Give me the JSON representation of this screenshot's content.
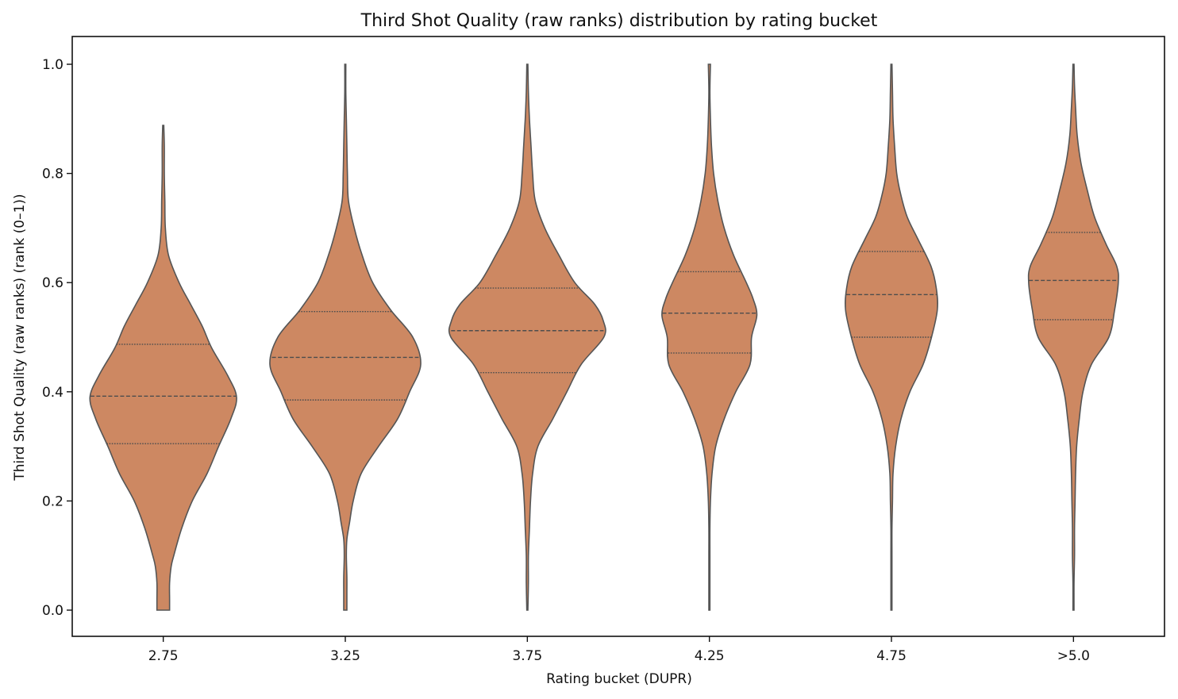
{
  "chart_data": {
    "type": "violin",
    "title": "Third Shot Quality (raw ranks) distribution by rating bucket",
    "xlabel": "Rating bucket (DUPR)",
    "ylabel": "Third Shot Quality (raw ranks) (rank (0–1))",
    "ylim": [
      -0.048,
      1.05
    ],
    "yticks": [
      "0.0",
      "0.2",
      "0.4",
      "0.6",
      "0.8",
      "1.0"
    ],
    "grid": false,
    "fill_color": "#cd8862",
    "line_color": "#555555",
    "categories": [
      "2.75",
      "3.25",
      "3.75",
      "4.25",
      "4.75",
      ">5.0"
    ],
    "violins": [
      {
        "category": "2.75",
        "min": 0.0,
        "max": 0.888,
        "q1": 0.305,
        "median": 0.392,
        "q3": 0.487,
        "profile": [
          [
            0.0,
            0.012
          ],
          [
            0.02,
            0.012
          ],
          [
            0.05,
            0.012
          ],
          [
            0.08,
            0.015
          ],
          [
            0.1,
            0.02
          ],
          [
            0.15,
            0.035
          ],
          [
            0.2,
            0.055
          ],
          [
            0.25,
            0.083
          ],
          [
            0.3,
            0.105
          ],
          [
            0.35,
            0.128
          ],
          [
            0.39,
            0.139
          ],
          [
            0.43,
            0.122
          ],
          [
            0.48,
            0.092
          ],
          [
            0.52,
            0.074
          ],
          [
            0.56,
            0.052
          ],
          [
            0.6,
            0.03
          ],
          [
            0.65,
            0.01
          ],
          [
            0.7,
            0.004
          ],
          [
            0.75,
            0.003
          ],
          [
            0.8,
            0.002
          ],
          [
            0.85,
            0.002
          ],
          [
            0.888,
            0.001
          ]
        ]
      },
      {
        "category": "3.25",
        "min": 0.0,
        "max": 1.0,
        "q1": 0.385,
        "median": 0.463,
        "q3": 0.547,
        "profile": [
          [
            0.0,
            0.003
          ],
          [
            0.03,
            0.003
          ],
          [
            0.06,
            0.003
          ],
          [
            0.1,
            0.002
          ],
          [
            0.13,
            0.003
          ],
          [
            0.16,
            0.008
          ],
          [
            0.2,
            0.015
          ],
          [
            0.25,
            0.03
          ],
          [
            0.3,
            0.063
          ],
          [
            0.35,
            0.099
          ],
          [
            0.4,
            0.122
          ],
          [
            0.45,
            0.143
          ],
          [
            0.5,
            0.128
          ],
          [
            0.55,
            0.086
          ],
          [
            0.6,
            0.052
          ],
          [
            0.65,
            0.032
          ],
          [
            0.7,
            0.017
          ],
          [
            0.75,
            0.006
          ],
          [
            0.8,
            0.004
          ],
          [
            0.85,
            0.003
          ],
          [
            0.9,
            0.002
          ],
          [
            0.95,
            0.001
          ],
          [
            1.0,
            0.001
          ]
        ]
      },
      {
        "category": "3.75",
        "min": 0.0,
        "max": 1.0,
        "q1": 0.435,
        "median": 0.512,
        "q3": 0.59,
        "profile": [
          [
            0.0,
            0.001
          ],
          [
            0.05,
            0.002
          ],
          [
            0.1,
            0.002
          ],
          [
            0.15,
            0.004
          ],
          [
            0.2,
            0.006
          ],
          [
            0.25,
            0.01
          ],
          [
            0.3,
            0.02
          ],
          [
            0.35,
            0.048
          ],
          [
            0.4,
            0.075
          ],
          [
            0.45,
            0.102
          ],
          [
            0.5,
            0.145
          ],
          [
            0.53,
            0.144
          ],
          [
            0.56,
            0.128
          ],
          [
            0.6,
            0.09
          ],
          [
            0.65,
            0.06
          ],
          [
            0.7,
            0.033
          ],
          [
            0.75,
            0.015
          ],
          [
            0.8,
            0.01
          ],
          [
            0.85,
            0.007
          ],
          [
            0.9,
            0.004
          ],
          [
            0.95,
            0.002
          ],
          [
            1.0,
            0.001
          ]
        ]
      },
      {
        "category": "4.25",
        "min": 0.0,
        "max": 1.0,
        "q1": 0.471,
        "median": 0.544,
        "q3": 0.62,
        "profile": [
          [
            0.0,
            0.001
          ],
          [
            0.05,
            0.001
          ],
          [
            0.1,
            0.001
          ],
          [
            0.15,
            0.001
          ],
          [
            0.2,
            0.002
          ],
          [
            0.25,
            0.005
          ],
          [
            0.3,
            0.012
          ],
          [
            0.35,
            0.028
          ],
          [
            0.4,
            0.05
          ],
          [
            0.45,
            0.077
          ],
          [
            0.5,
            0.08
          ],
          [
            0.54,
            0.09
          ],
          [
            0.57,
            0.083
          ],
          [
            0.6,
            0.07
          ],
          [
            0.65,
            0.046
          ],
          [
            0.7,
            0.028
          ],
          [
            0.75,
            0.016
          ],
          [
            0.8,
            0.008
          ],
          [
            0.85,
            0.004
          ],
          [
            0.9,
            0.002
          ],
          [
            0.95,
            0.001
          ],
          [
            1.0,
            0.002
          ]
        ]
      },
      {
        "category": "4.75",
        "min": 0.0,
        "max": 1.0,
        "q1": 0.5,
        "median": 0.578,
        "q3": 0.657,
        "profile": [
          [
            0.0,
            0.001
          ],
          [
            0.05,
            0.001
          ],
          [
            0.1,
            0.001
          ],
          [
            0.15,
            0.001
          ],
          [
            0.2,
            0.002
          ],
          [
            0.25,
            0.003
          ],
          [
            0.3,
            0.008
          ],
          [
            0.35,
            0.018
          ],
          [
            0.4,
            0.035
          ],
          [
            0.45,
            0.06
          ],
          [
            0.5,
            0.076
          ],
          [
            0.55,
            0.087
          ],
          [
            0.59,
            0.085
          ],
          [
            0.63,
            0.075
          ],
          [
            0.68,
            0.05
          ],
          [
            0.72,
            0.03
          ],
          [
            0.76,
            0.018
          ],
          [
            0.8,
            0.01
          ],
          [
            0.85,
            0.006
          ],
          [
            0.9,
            0.003
          ],
          [
            0.95,
            0.002
          ],
          [
            1.0,
            0.001
          ]
        ]
      },
      {
        "category": ">5.0",
        "min": 0.0,
        "max": 1.0,
        "q1": 0.532,
        "median": 0.604,
        "q3": 0.692,
        "profile": [
          [
            0.0,
            0.001
          ],
          [
            0.05,
            0.001
          ],
          [
            0.1,
            0.002
          ],
          [
            0.15,
            0.002
          ],
          [
            0.2,
            0.003
          ],
          [
            0.25,
            0.004
          ],
          [
            0.3,
            0.006
          ],
          [
            0.35,
            0.011
          ],
          [
            0.4,
            0.018
          ],
          [
            0.45,
            0.034
          ],
          [
            0.5,
            0.067
          ],
          [
            0.55,
            0.078
          ],
          [
            0.6,
            0.085
          ],
          [
            0.63,
            0.082
          ],
          [
            0.67,
            0.062
          ],
          [
            0.72,
            0.04
          ],
          [
            0.77,
            0.026
          ],
          [
            0.82,
            0.014
          ],
          [
            0.87,
            0.007
          ],
          [
            0.92,
            0.004
          ],
          [
            0.96,
            0.002
          ],
          [
            1.0,
            0.001
          ]
        ]
      }
    ]
  }
}
